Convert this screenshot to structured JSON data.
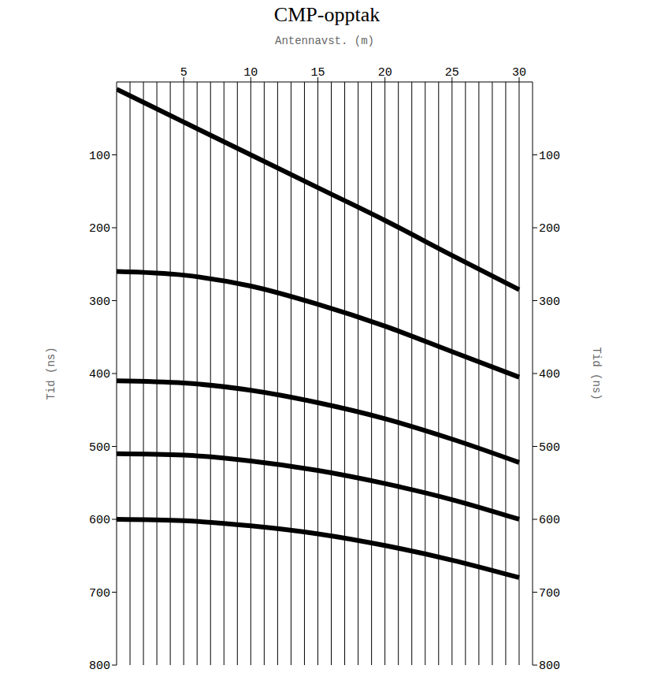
{
  "chart_data": {
    "type": "line",
    "title": "CMP-opptak",
    "x_label": "Antennavst. (m)",
    "y_label": "Tid (ns)",
    "xlim": [
      0,
      31
    ],
    "xticks": [
      5,
      10,
      15,
      20,
      25,
      30
    ],
    "ylim": [
      0,
      800
    ],
    "yticks": [
      100,
      200,
      300,
      400,
      500,
      600,
      700,
      800
    ],
    "grid": false,
    "trace_offsets": [
      1,
      2,
      3,
      4,
      5,
      6,
      7,
      8,
      9,
      10,
      11,
      12,
      13,
      14,
      15,
      16,
      17,
      18,
      19,
      20,
      21,
      22,
      23,
      24,
      25,
      26,
      27,
      28,
      29,
      30
    ],
    "series": [
      {
        "color": "#000000",
        "x": [
          0,
          5,
          10,
          15,
          20,
          25,
          30
        ],
        "values": [
          10,
          55,
          100,
          145,
          190,
          238,
          285
        ]
      },
      {
        "color": "#000000",
        "x": [
          0,
          5,
          10,
          15,
          20,
          25,
          30
        ],
        "values": [
          260,
          265,
          280,
          305,
          335,
          370,
          405
        ]
      },
      {
        "color": "#000000",
        "x": [
          0,
          5,
          10,
          15,
          20,
          25,
          30
        ],
        "values": [
          410,
          413,
          423,
          440,
          462,
          490,
          522
        ]
      },
      {
        "color": "#000000",
        "x": [
          0,
          5,
          10,
          15,
          20,
          25,
          30
        ],
        "values": [
          510,
          512,
          520,
          533,
          551,
          573,
          600
        ]
      },
      {
        "color": "#000000",
        "x": [
          0,
          5,
          10,
          15,
          20,
          25,
          30
        ],
        "values": [
          600,
          602,
          609,
          620,
          636,
          656,
          680
        ]
      }
    ]
  }
}
